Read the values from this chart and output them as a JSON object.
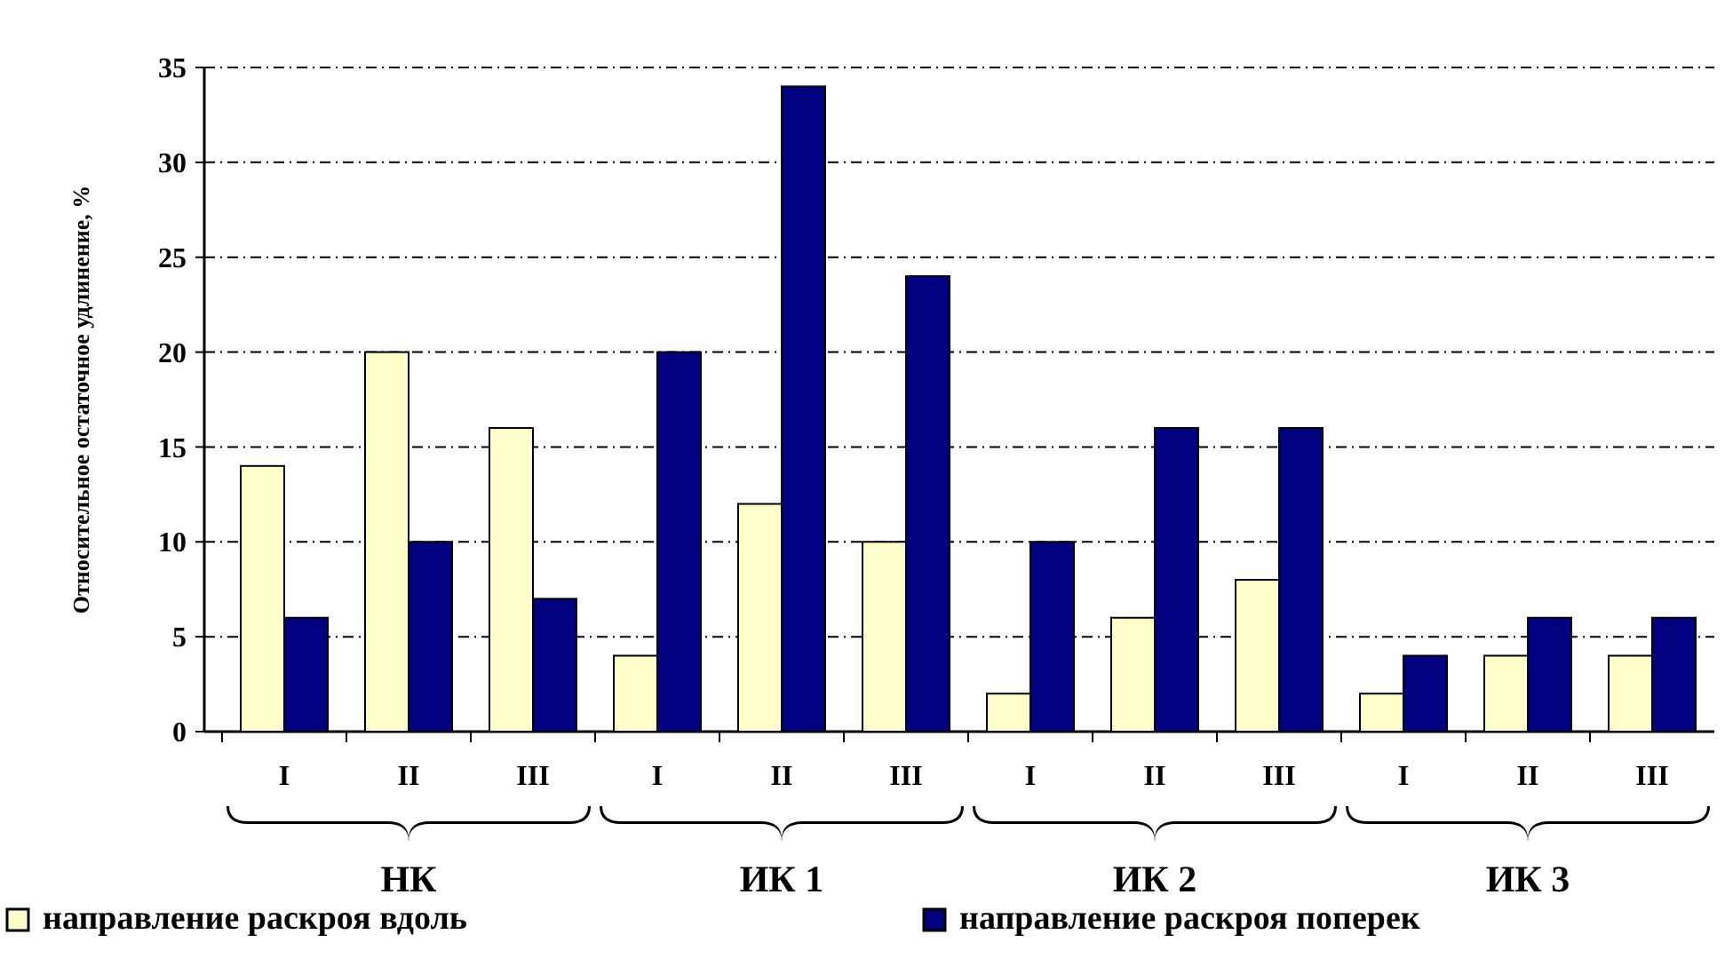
{
  "chart_data": {
    "type": "bar",
    "ylabel": "Относительное остаточное удлинение, %",
    "categories": [
      "I",
      "II",
      "III",
      "I",
      "II",
      "III",
      "I",
      "II",
      "III",
      "I",
      "II",
      "III"
    ],
    "series": [
      {
        "name": "направление раскроя вдоль",
        "color": "#ffffcc",
        "values": [
          14,
          20,
          16,
          4,
          12,
          10,
          2,
          6,
          8,
          2,
          4,
          4
        ]
      },
      {
        "name": "направление раскроя поперек",
        "color": "#000080",
        "values": [
          6,
          10,
          7,
          20,
          34,
          24,
          10,
          16,
          16,
          4,
          6,
          6
        ]
      }
    ],
    "ylim": [
      0,
      35
    ],
    "yticks": [
      0,
      5,
      10,
      15,
      20,
      25,
      30,
      35
    ],
    "grid": "y",
    "legend": "bottom",
    "annotations": [
      "НК",
      "ИК 1",
      "ИК 2",
      "ИК 3"
    ]
  }
}
